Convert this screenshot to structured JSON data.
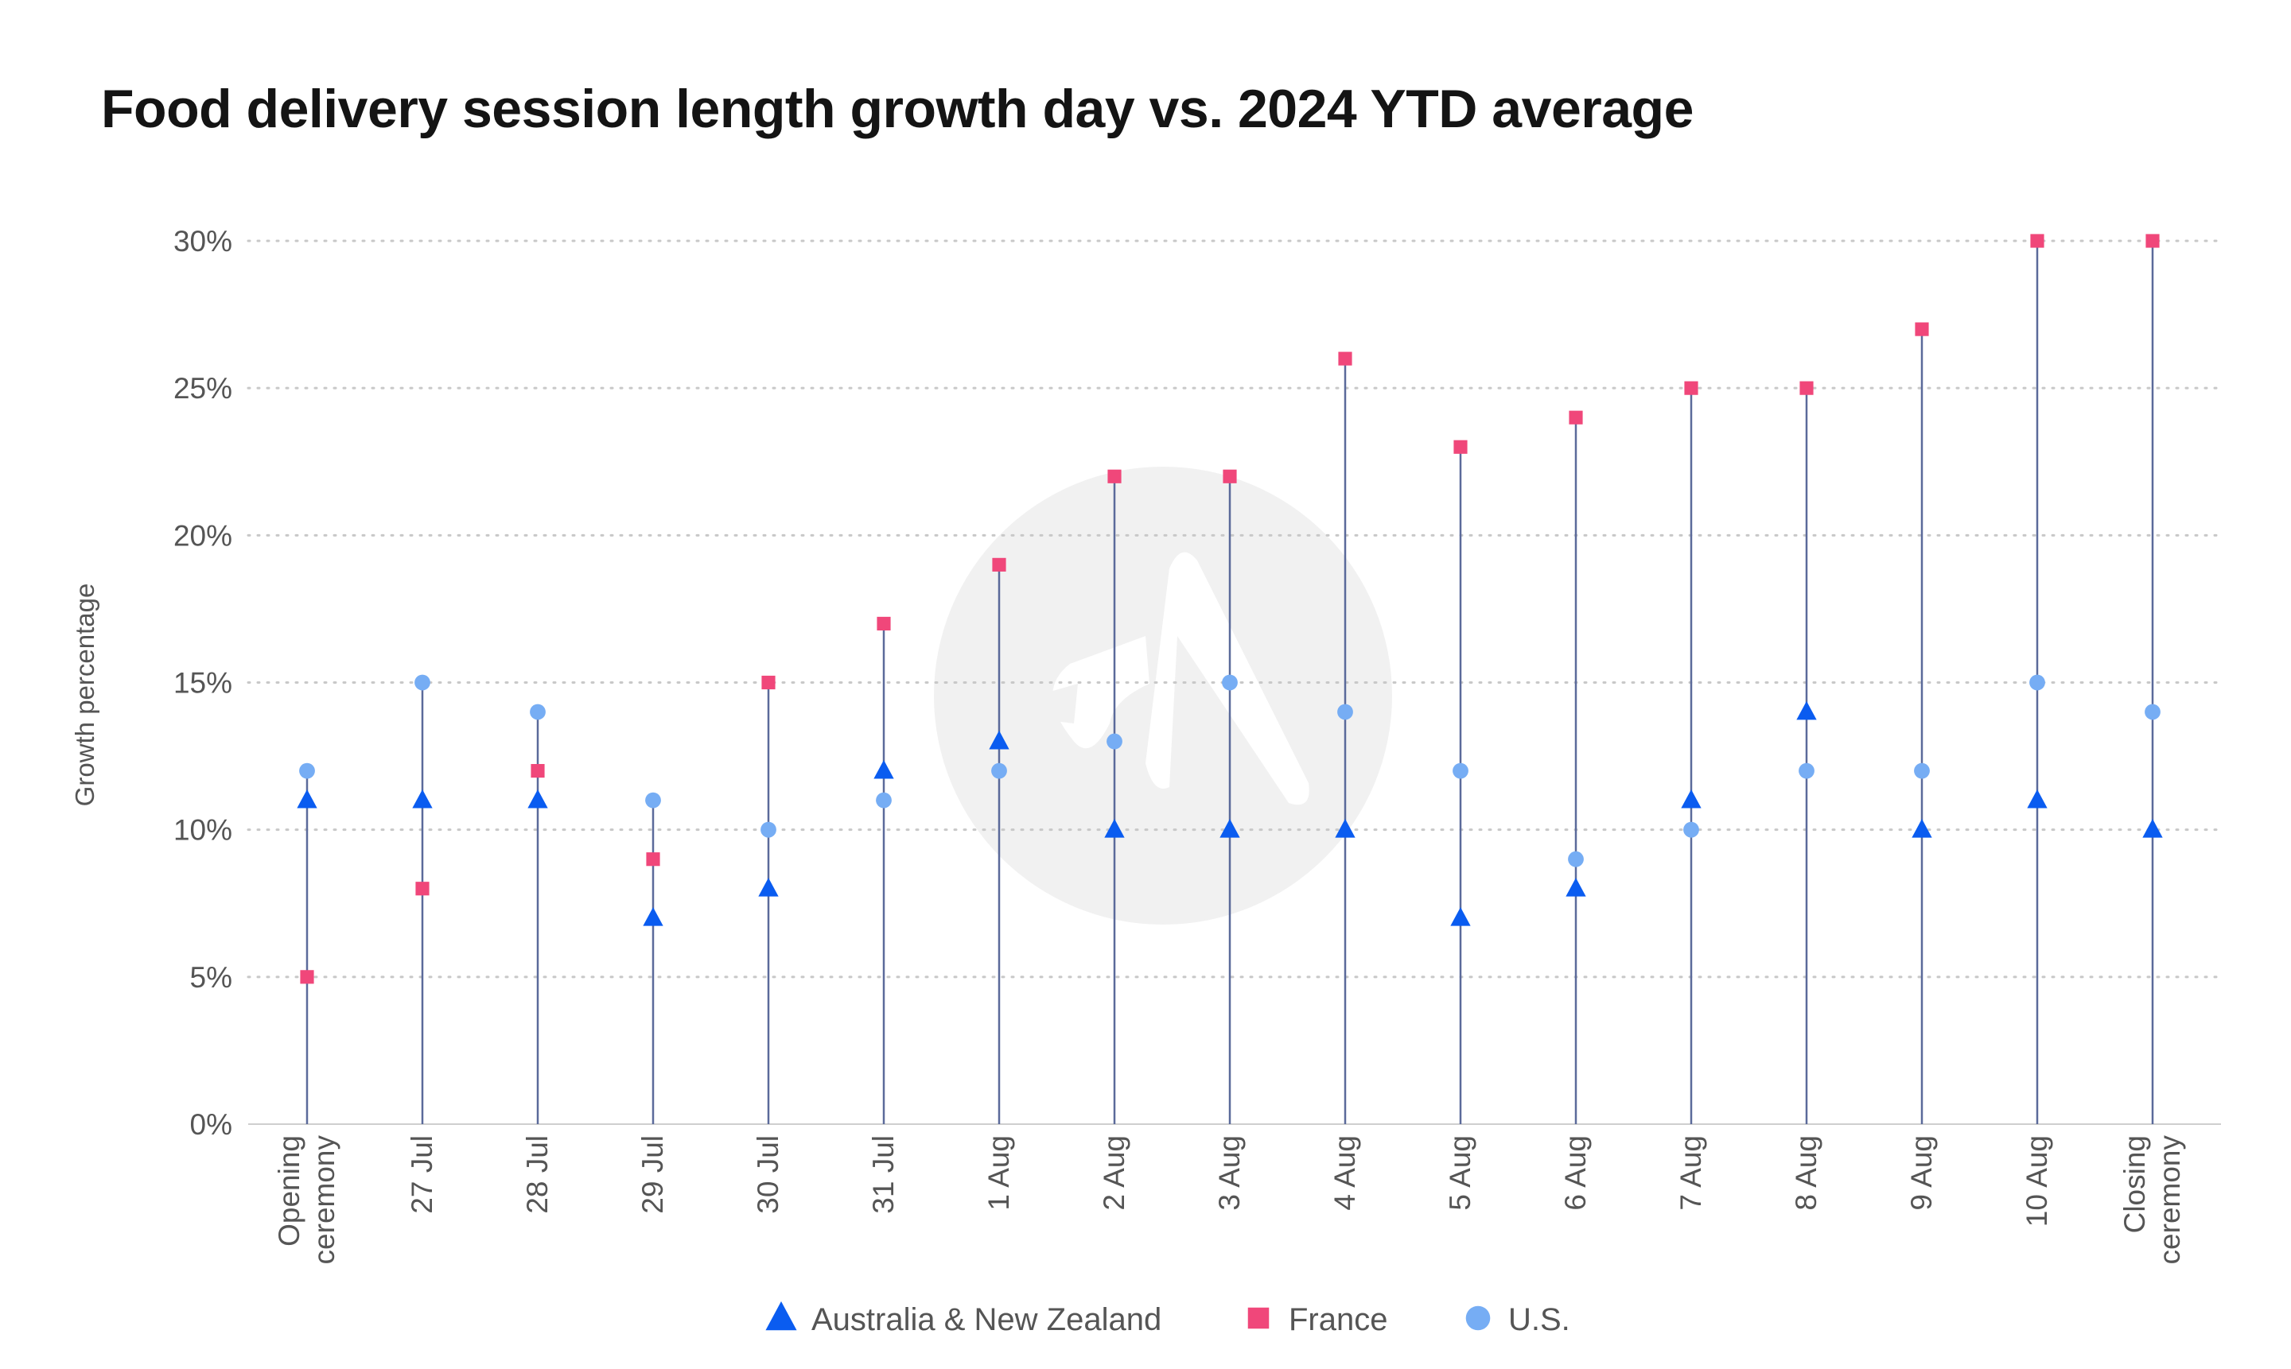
{
  "chart_data": {
    "type": "scatter",
    "title": "Food delivery session length growth day vs. 2024 YTD average",
    "xlabel": "",
    "ylabel": "Growth percentage",
    "ylim": [
      0,
      30
    ],
    "yticks": [
      "0%",
      "5%",
      "10%",
      "15%",
      "20%",
      "25%",
      "30%"
    ],
    "grid": "horizontal dotted",
    "legend_position": "bottom",
    "categories": [
      [
        "Opening",
        "ceremony"
      ],
      [
        "27 Jul"
      ],
      [
        "28 Jul"
      ],
      [
        "29 Jul"
      ],
      [
        "30 Jul"
      ],
      [
        "31 Jul"
      ],
      [
        "1 Aug"
      ],
      [
        "2 Aug"
      ],
      [
        "3 Aug"
      ],
      [
        "4 Aug"
      ],
      [
        "5 Aug"
      ],
      [
        "6 Aug"
      ],
      [
        "7 Aug"
      ],
      [
        "8 Aug"
      ],
      [
        "9 Aug"
      ],
      [
        "10 Aug"
      ],
      [
        "Closing",
        "ceremony"
      ]
    ],
    "series": [
      {
        "name": "Australia & New Zealand",
        "marker": "triangle",
        "color": "#0a5cf0",
        "values": [
          11,
          11,
          11,
          7,
          8,
          12,
          13,
          10,
          10,
          10,
          7,
          8,
          11,
          14,
          10,
          11,
          10
        ]
      },
      {
        "name": "France",
        "marker": "square",
        "color": "#f0477a",
        "values": [
          5,
          8,
          12,
          9,
          15,
          17,
          19,
          22,
          22,
          26,
          23,
          24,
          25,
          25,
          27,
          30,
          30
        ]
      },
      {
        "name": "U.S.",
        "marker": "circle",
        "color": "#76adf4",
        "values": [
          12,
          15,
          14,
          11,
          10,
          11,
          12,
          13,
          15,
          14,
          12,
          9,
          10,
          12,
          12,
          15,
          14
        ]
      }
    ],
    "stem_color": "#5b6a9a"
  }
}
